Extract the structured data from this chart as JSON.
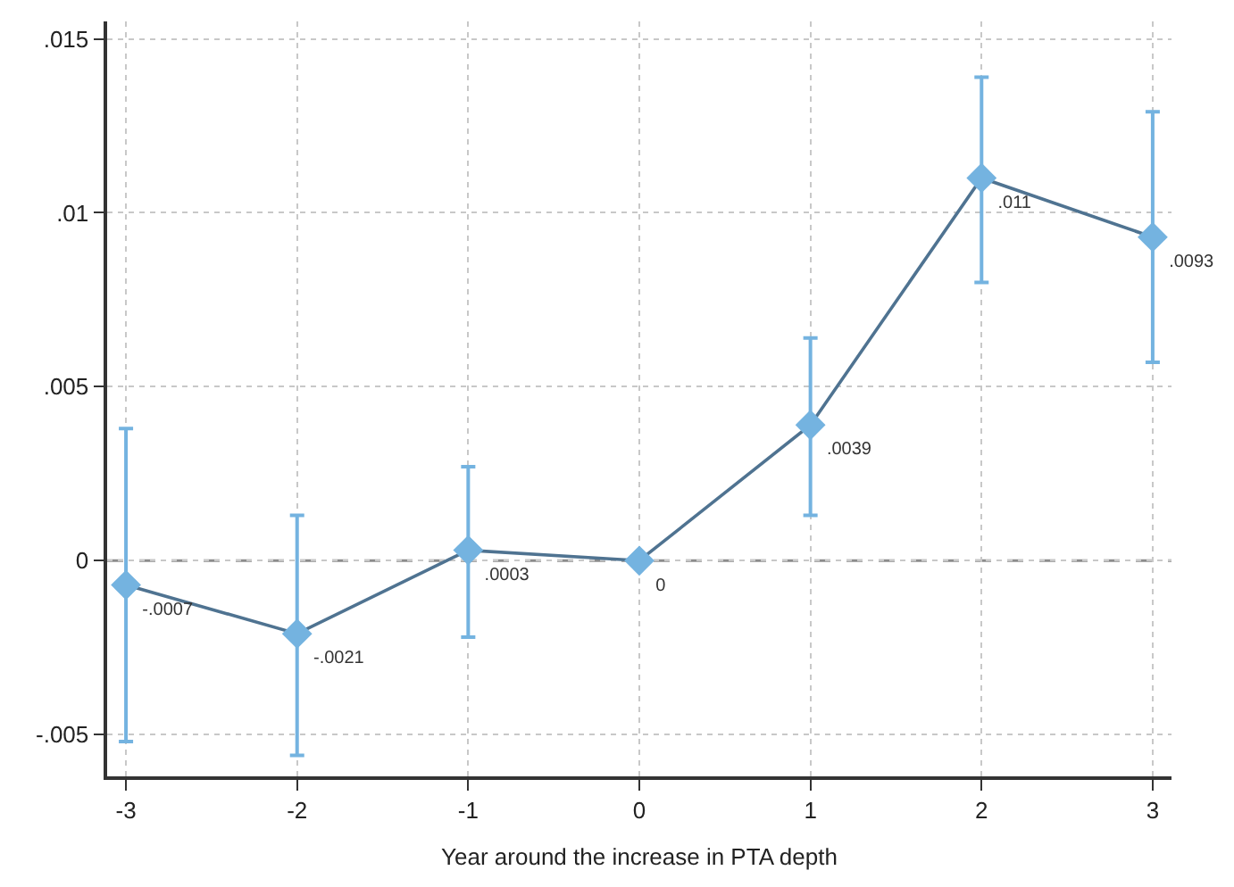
{
  "chart_data": {
    "type": "line",
    "xlabel": "Year around the increase in PTA depth",
    "x": [
      -3,
      -2,
      -1,
      0,
      1,
      2,
      3
    ],
    "series": [
      {
        "color": "#4f7391",
        "marker": "none",
        "values": [
          -0.0007,
          -0.0021,
          0.0003,
          0,
          0.0039,
          0.011,
          0.0093
        ]
      },
      {
        "type": "scatter",
        "color": "#74b3e0",
        "marker": "diamond",
        "values": [
          -0.0007,
          -0.0021,
          0.0003,
          0,
          0.0039,
          0.011,
          0.0093
        ],
        "errors": [
          [
            -0.0052,
            0.0038
          ],
          [
            -0.0056,
            0.0013
          ],
          [
            -0.0022,
            0.0027
          ],
          null,
          [
            0.0013,
            0.0064
          ],
          [
            0.008,
            0.0139
          ],
          [
            0.0057,
            0.0129
          ]
        ],
        "value_labels": [
          "-.0007",
          "-.0021",
          ".0003",
          "0",
          ".0039",
          ".011",
          ".0093"
        ]
      }
    ],
    "xlim": [
      -3.11,
      3.11
    ],
    "ylim": [
      -0.0062,
      0.0155
    ],
    "xticks": [
      -3,
      -2,
      -1,
      0,
      1,
      2,
      3
    ],
    "yticks": [
      {
        "value": -0.005,
        "label": "-.005"
      },
      0,
      {
        "value": 0.005,
        "label": ".005"
      },
      {
        "value": 0.01,
        "label": ".01"
      },
      {
        "value": 0.015,
        "label": ".015"
      }
    ],
    "ref_lines": [
      {
        "axis": "y",
        "value": 0,
        "color": "#8c8c8c",
        "line_style": "dashed"
      }
    ],
    "grid": true
  }
}
